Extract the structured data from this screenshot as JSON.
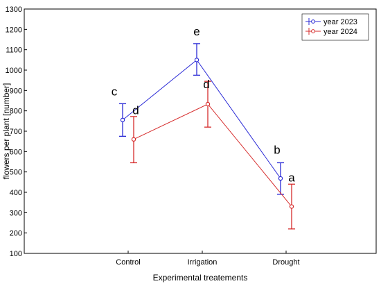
{
  "chart_data": {
    "type": "line",
    "title": "",
    "xlabel": "Experimental treatements",
    "ylabel": "flowers per plant [number]",
    "categories": [
      "Control",
      "Irrigation",
      "Drought"
    ],
    "ylim": [
      100,
      1300
    ],
    "yticks": [
      100,
      200,
      300,
      400,
      500,
      600,
      700,
      800,
      900,
      1000,
      1100,
      1200,
      1300
    ],
    "grid": false,
    "legend_position": "top-right",
    "series": [
      {
        "name": "year 2023",
        "color": "#2b2bd6",
        "values": [
          755,
          1050,
          468
        ],
        "error_low": [
          675,
          975,
          390
        ],
        "error_high": [
          835,
          1130,
          545
        ],
        "significance": [
          "c",
          "e",
          "b"
        ]
      },
      {
        "name": "year 2024",
        "color": "#d62b2b",
        "values": [
          660,
          833,
          330
        ],
        "error_low": [
          545,
          720,
          220
        ],
        "error_high": [
          772,
          945,
          440
        ],
        "significance": [
          "d",
          "d",
          "a"
        ]
      }
    ]
  }
}
